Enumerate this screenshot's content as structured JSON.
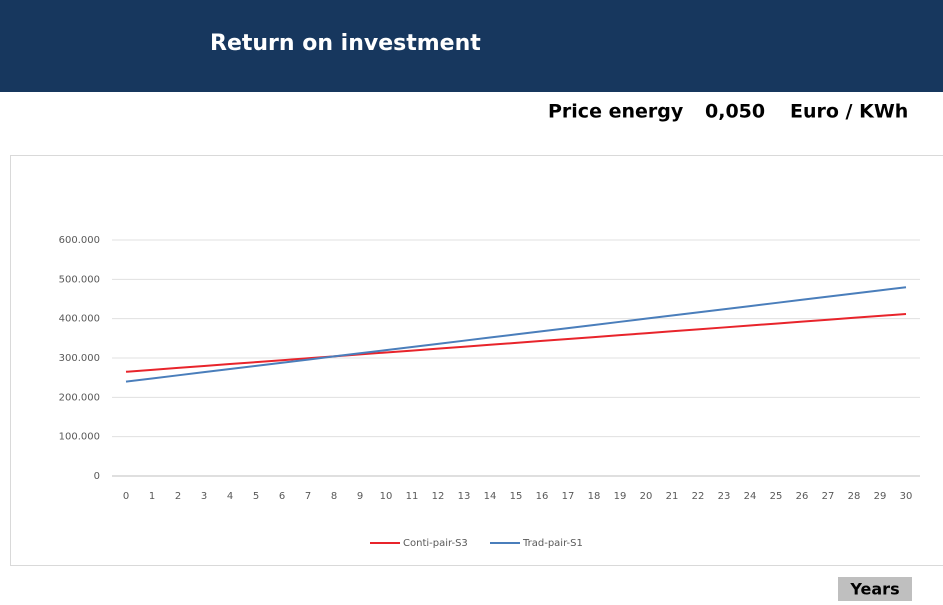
{
  "header": {
    "title": "Return on investment"
  },
  "price": {
    "label": "Price energy",
    "value": "0,050",
    "unit": "Euro / KWh"
  },
  "chart_data": {
    "type": "line",
    "xlabel": "Years",
    "categories": [
      0,
      1,
      2,
      3,
      4,
      5,
      6,
      7,
      8,
      9,
      10,
      11,
      12,
      13,
      14,
      15,
      16,
      17,
      18,
      19,
      20,
      21,
      22,
      23,
      24,
      25,
      26,
      27,
      28,
      29,
      30
    ],
    "series": [
      {
        "name": "Conti-pair-S3",
        "color": "#e8242b",
        "values": [
          265000,
          269900,
          274800,
          279700,
          284600,
          289500,
          294400,
          299300,
          304200,
          309100,
          314000,
          318900,
          323800,
          328700,
          333600,
          338500,
          343400,
          348300,
          353200,
          358100,
          363000,
          367900,
          372800,
          377700,
          382600,
          387500,
          392400,
          397300,
          402200,
          407100,
          412000
        ]
      },
      {
        "name": "Trad-pair-S1",
        "color": "#4a7ebb",
        "values": [
          240000,
          248000,
          256000,
          264000,
          272000,
          280000,
          288000,
          296000,
          304000,
          312000,
          320000,
          328000,
          336000,
          344000,
          352000,
          360000,
          368000,
          376000,
          384000,
          392000,
          400000,
          408000,
          416000,
          424000,
          432000,
          440000,
          448000,
          456000,
          464000,
          472000,
          480000
        ]
      }
    ],
    "ylim": [
      0,
      600000
    ],
    "yticks": [
      0,
      {
        "value": 100000,
        "label": "100.000"
      },
      {
        "value": 200000,
        "label": "200.000"
      },
      {
        "value": 300000,
        "label": "300.000"
      },
      {
        "value": 400000,
        "label": "400.000"
      },
      {
        "value": 500000,
        "label": "500.000"
      },
      {
        "value": 600000,
        "label": "600.000"
      }
    ],
    "grid": true
  }
}
